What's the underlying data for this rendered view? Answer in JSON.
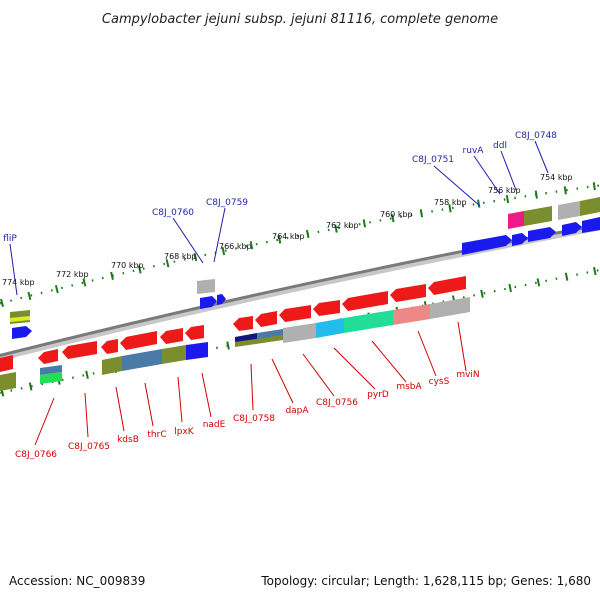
{
  "title": "Campylobacter jejuni subsp. jejuni 81116, complete genome",
  "accession_label": "Accession: NC_009839",
  "summary_label": "Topology: circular; Length: 1,628,115 bp; Genes: 1,680",
  "colors": {
    "plus_strand": "#1a1aee",
    "minus_strand": "#ee1a1a",
    "backbone": "#808080",
    "tick": "#1d7a1d",
    "label_top": "#1f1faa",
    "label_bottom": "#d40000",
    "cog_olive": "#7a8e2e",
    "cog_steel": "#4a7aa8",
    "cog_grey": "#b0b0b0",
    "cog_cyan": "#22bbee",
    "cog_green": "#22dd99",
    "cog_pink": "#ee8888",
    "cog_magenta": "#ee1a88",
    "cog_navy": "#151580"
  },
  "kbp_ticks": [
    {
      "label": "774 kbp"
    },
    {
      "label": "772 kbp"
    },
    {
      "label": "770 kbp"
    },
    {
      "label": "768 kbp"
    },
    {
      "label": "766 kbp"
    },
    {
      "label": "764 kbp"
    },
    {
      "label": "762 kbp"
    },
    {
      "label": "760 kbp"
    },
    {
      "label": "758 kbp"
    },
    {
      "label": "756 kbp"
    },
    {
      "label": "754 kbp"
    }
  ],
  "genes_plus": [
    {
      "label": "fliP"
    },
    {
      "label": "C8J_0760"
    },
    {
      "label": "C8J_0759"
    },
    {
      "label": "C8J_0751"
    },
    {
      "label": "ruvA"
    },
    {
      "label": "ddl"
    },
    {
      "label": "C8J_0748"
    }
  ],
  "genes_minus": [
    {
      "label": "C8J_0766"
    },
    {
      "label": "C8J_0765"
    },
    {
      "label": "kdsB"
    },
    {
      "label": "thrC"
    },
    {
      "label": "lpxK"
    },
    {
      "label": "nadE"
    },
    {
      "label": "C8J_0758"
    },
    {
      "label": "dapA"
    },
    {
      "label": "C8J_0756"
    },
    {
      "label": "pyrD"
    },
    {
      "label": "msbA"
    },
    {
      "label": "cysS"
    },
    {
      "label": "mviN"
    }
  ]
}
